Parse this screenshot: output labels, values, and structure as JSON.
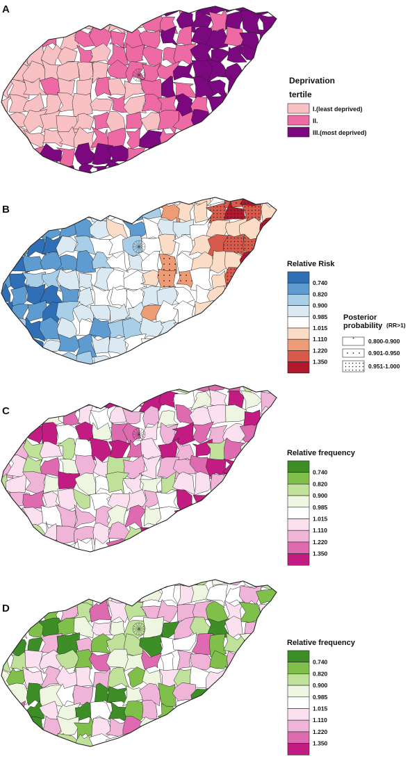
{
  "panels": [
    {
      "letter": "A",
      "legend": {
        "title_line1": "Deprivation",
        "title_line2": "tertile",
        "items": [
          {
            "label": "I.(least deprived)",
            "color": "#f9c1c4"
          },
          {
            "label": "II.",
            "color": "#ee6aa4"
          },
          {
            "label": "III.(most deprived)",
            "color": "#7b087f"
          }
        ]
      }
    },
    {
      "letter": "B",
      "legend": {
        "title": "Relative Risk",
        "breaks": [
          "0.740",
          "0.820",
          "0.900",
          "0.985",
          "1.015",
          "1.110",
          "1.220",
          "1.350"
        ],
        "colors": [
          "#2f6fb6",
          "#5d9bd0",
          "#a9cfe8",
          "#dbe9f3",
          "#ffffff",
          "#fbdcc6",
          "#ee9c75",
          "#d75a4b",
          "#b2182b"
        ],
        "posterior": {
          "title_line1": "Posterior",
          "title_line2": "probability",
          "suffix": "(RR>1)",
          "items": [
            "0.800-0.900",
            "0.901-0.950",
            "0.951-1.000"
          ]
        }
      }
    },
    {
      "letter": "C",
      "legend": {
        "title": "Relative frequency",
        "breaks": [
          "0.740",
          "0.820",
          "0.900",
          "0.985",
          "1.015",
          "1.110",
          "1.220",
          "1.350"
        ],
        "colors": [
          "#3e8e27",
          "#80bf4a",
          "#bfe19a",
          "#eef6e1",
          "#ffffff",
          "#fbe0ef",
          "#efb4d8",
          "#de6ab0",
          "#c21b82"
        ]
      }
    },
    {
      "letter": "D",
      "legend": {
        "title": "Relative frequency",
        "breaks": [
          "0.740",
          "0.820",
          "0.900",
          "0.985",
          "1.015",
          "1.110",
          "1.220",
          "1.350"
        ],
        "colors": [
          "#3e8e27",
          "#80bf4a",
          "#bfe19a",
          "#eef6e1",
          "#ffffff",
          "#fbe0ef",
          "#efb4d8",
          "#de6ab0",
          "#c21b82"
        ]
      }
    }
  ]
}
